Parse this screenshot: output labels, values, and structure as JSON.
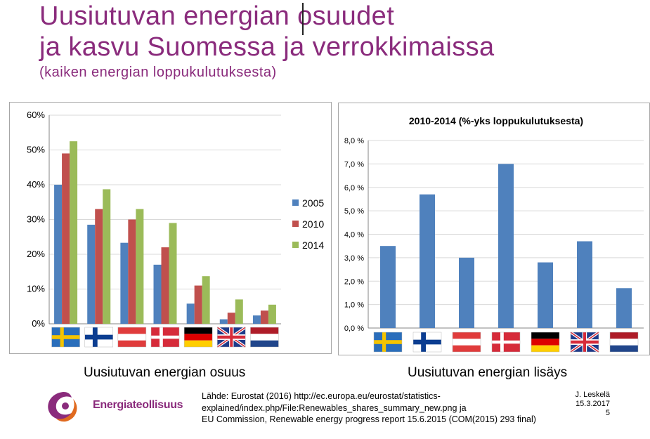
{
  "slide": {
    "title_line1": "Uusiutuvan energian osuudet",
    "title_line2": "ja kasvu Suomessa ja verrokkimaissa",
    "subtitle": "(kaiken energian loppukulutuksesta)",
    "caption_left": "Uusiutuvan energian osuus",
    "caption_right": "Uusiutuvan energian lisäys",
    "source_line1": "Lähde: Eurostat (2016) http://ec.europa.eu/eurostat/statistics-",
    "source_line2": "explained/index.php/File:Renewables_shares_summary_new.png ja",
    "source_line3": "EU Commission, Renewable energy progress report 15.6.2015 (COM(2015) 293 final)",
    "author": "J. Leskelä",
    "date": "15.3.2017",
    "page": "5",
    "logo_text": "Energiateollisuus"
  },
  "flags": [
    {
      "icon": "sweden-flag-icon",
      "colors": [
        "#2a6ebb",
        "#f5c400"
      ]
    },
    {
      "icon": "finland-flag-icon",
      "colors": [
        "#ffffff",
        "#0b3d91"
      ]
    },
    {
      "icon": "austria-flag-icon",
      "colors": [
        "#e03c3c",
        "#ffffff"
      ]
    },
    {
      "icon": "denmark-flag-icon",
      "colors": [
        "#d62b3a",
        "#ffffff"
      ]
    },
    {
      "icon": "germany-flag-icon",
      "colors": [
        "#000000",
        "#dd0000",
        "#ffce00"
      ]
    },
    {
      "icon": "uk-flag-icon",
      "colors": [
        "#1f3b8a",
        "#ffffff",
        "#d62b3a"
      ]
    },
    {
      "icon": "netherlands-flag-icon",
      "colors": [
        "#ae1c28",
        "#ffffff",
        "#21468b"
      ]
    }
  ],
  "chart_data": [
    {
      "type": "bar",
      "title": "",
      "categories": [
        "",
        "",
        "",
        "",
        "",
        "",
        ""
      ],
      "series": [
        {
          "name": "2005",
          "color": "#4f81bd",
          "values": [
            40,
            28.5,
            23.3,
            17,
            5.8,
            1.3,
            2.4
          ]
        },
        {
          "name": "2010",
          "color": "#c0504d",
          "values": [
            49,
            33,
            30,
            22,
            11,
            3.2,
            3.8
          ]
        },
        {
          "name": "2014",
          "color": "#9bbb59",
          "values": [
            52.5,
            38.7,
            33,
            29,
            13.7,
            7,
            5.5
          ]
        }
      ],
      "yticks": [
        "0%",
        "10%",
        "20%",
        "30%",
        "40%",
        "50%",
        "60%"
      ],
      "ylim": [
        0,
        60
      ],
      "legend": "right",
      "grid": true
    },
    {
      "type": "bar",
      "title": "2010-2014 (%-yks loppukulutuksesta)",
      "categories": [
        "",
        "",
        "",
        "",
        "",
        "",
        ""
      ],
      "series": [
        {
          "color": "#4f81bd",
          "values": [
            3.5,
            5.7,
            3.0,
            7.0,
            2.8,
            3.7,
            1.7
          ]
        }
      ],
      "yticks": [
        "0,0 %",
        "1,0 %",
        "2,0 %",
        "3,0 %",
        "4,0 %",
        "5,0 %",
        "6,0 %",
        "7,0 %",
        "8,0 %"
      ],
      "ylim": [
        0,
        8
      ],
      "grid": true
    }
  ]
}
